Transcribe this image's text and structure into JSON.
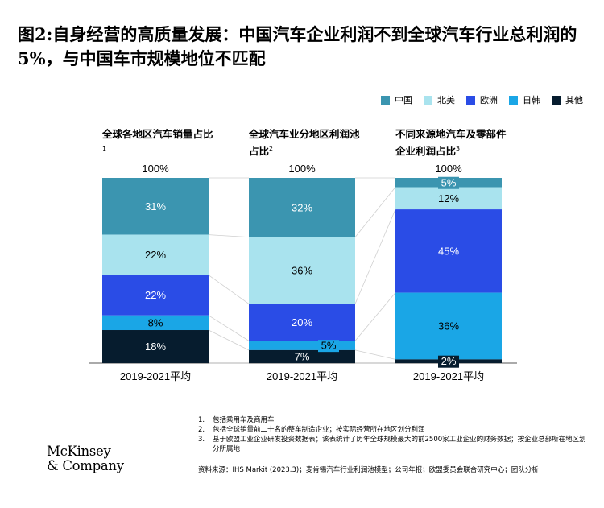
{
  "title": "图2:自身经营的高质量发展：中国汽车企业利润不到全球汽车行业总利润的5%，与中国车市规模地位不匹配",
  "legend": [
    {
      "label": "中国",
      "color": "#3b95b0"
    },
    {
      "label": "北美",
      "color": "#a9e3ee"
    },
    {
      "label": "欧洲",
      "color": "#2a4ce6"
    },
    {
      "label": "日韩",
      "color": "#1aa6e6"
    },
    {
      "label": "其他",
      "color": "#061c2e"
    }
  ],
  "chart_data": {
    "type": "bar",
    "stacked": true,
    "normalized": true,
    "panels": [
      {
        "title": "全球各地区汽车销量占比",
        "footnote": "1",
        "total_label": "100%",
        "category": "2019-2021平均",
        "values": [
          31,
          22,
          22,
          8,
          18
        ],
        "labels": [
          "31%",
          "22%",
          "22%",
          "8%",
          "18%"
        ]
      },
      {
        "title": "全球汽车业分地区利润池占比",
        "footnote": "2",
        "total_label": "100%",
        "category": "2019-2021平均",
        "values": [
          32,
          36,
          20,
          5,
          7
        ],
        "labels": [
          "32%",
          "36%",
          "20%",
          "5%",
          "7%"
        ]
      },
      {
        "title": "不同来源地汽车及零部件企业利润占比",
        "footnote": "3",
        "total_label": "100%",
        "category": "2019-2021平均",
        "values": [
          5,
          12,
          45,
          36,
          2
        ],
        "labels": [
          "5%",
          "12%",
          "45%",
          "36%",
          "2%"
        ]
      }
    ],
    "series": [
      "中国",
      "北美",
      "欧洲",
      "日韩",
      "其他"
    ]
  },
  "notes": [
    {
      "num": "1.",
      "text": "包括乘用车及商用车"
    },
    {
      "num": "2.",
      "text": "包括全球销量前二十名的整车制造企业；按实际经营所在地区划分利润"
    },
    {
      "num": "3.",
      "text": "基于欧盟工业企业研发投资数据表；该表统计了历年全球规模最大的前2500家工业企业的财务数据；按企业总部所在地区划分所属地"
    }
  ],
  "source": "资料来源：IHS Markit (2023.3)；麦肯锡汽车行业利润池模型；公司年报；欧盟委员会联合研究中心；团队分析",
  "logo": {
    "line1": "McKinsey",
    "line2": "& Company"
  }
}
